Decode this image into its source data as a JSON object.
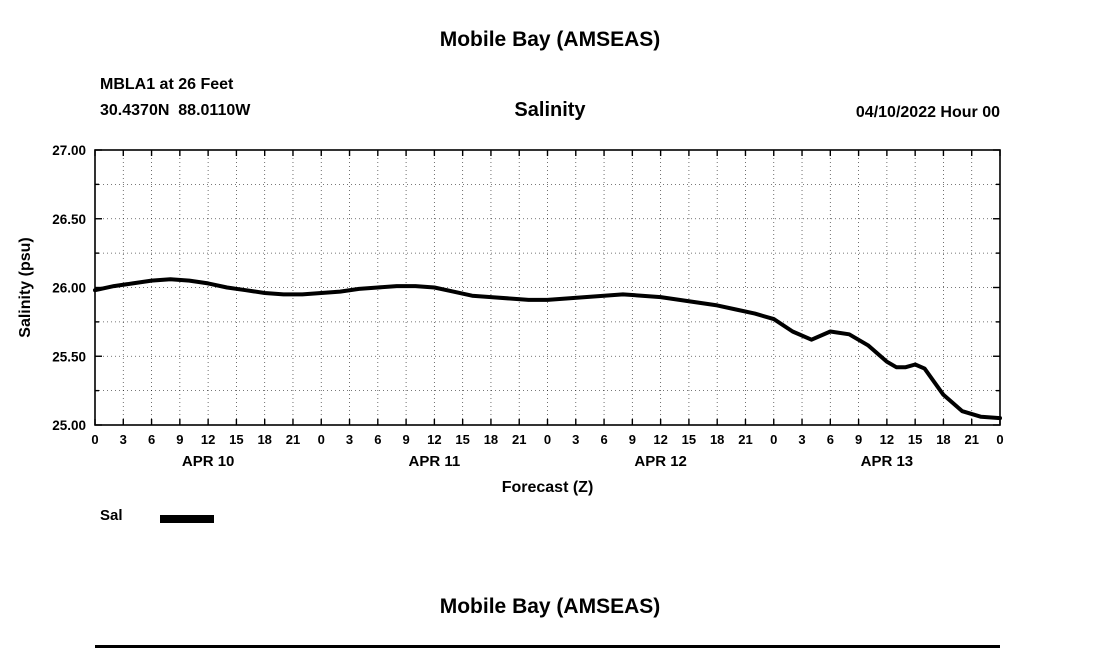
{
  "header": {
    "title": "Mobile Bay (AMSEAS)",
    "station": "MBLA1 at 26 Feet",
    "coordinates": "30.4370N  88.0110W",
    "variable": "Salinity",
    "run_label": "04/10/2022 Hour 00"
  },
  "legend": {
    "label": "Sal",
    "color": "#000000"
  },
  "next_chart": {
    "title": "Mobile Bay (AMSEAS)"
  },
  "chart_data": {
    "type": "line",
    "title": "Mobile Bay (AMSEAS)",
    "subtitle": "Salinity",
    "station": "MBLA1 at 26 Feet",
    "run": "04/10/2022 Hour 00",
    "xlabel": "Forecast (Z)",
    "ylabel": "Salinity (psu)",
    "ylim": [
      25.0,
      27.0
    ],
    "yticks": [
      25.0,
      25.5,
      26.0,
      26.5,
      27.0
    ],
    "xlim_hours": [
      0,
      96
    ],
    "x_tick_interval_hours": 3,
    "x_tick_labels_cycle": [
      "0",
      "3",
      "6",
      "9",
      "12",
      "15",
      "18",
      "21"
    ],
    "day_labels": [
      "APR 10",
      "APR 11",
      "APR 12",
      "APR 13"
    ],
    "grid": "dotted",
    "legend_position": "below-left",
    "series": [
      {
        "name": "Sal",
        "color": "#000000",
        "x_hours": [
          0,
          2,
          4,
          6,
          8,
          10,
          12,
          14,
          16,
          18,
          20,
          22,
          24,
          26,
          28,
          30,
          32,
          34,
          36,
          38,
          40,
          42,
          44,
          46,
          48,
          50,
          52,
          54,
          56,
          58,
          60,
          62,
          64,
          66,
          68,
          70,
          72,
          74,
          76,
          78,
          80,
          82,
          84,
          85,
          86,
          87,
          88,
          90,
          92,
          94,
          96
        ],
        "values": [
          25.98,
          26.01,
          26.03,
          26.05,
          26.06,
          26.05,
          26.03,
          26.0,
          25.98,
          25.96,
          25.95,
          25.95,
          25.96,
          25.97,
          25.99,
          26.0,
          26.01,
          26.01,
          26.0,
          25.97,
          25.94,
          25.93,
          25.92,
          25.91,
          25.91,
          25.92,
          25.93,
          25.94,
          25.95,
          25.94,
          25.93,
          25.91,
          25.89,
          25.87,
          25.84,
          25.81,
          25.77,
          25.68,
          25.62,
          25.68,
          25.66,
          25.58,
          25.46,
          25.42,
          25.42,
          25.44,
          25.41,
          25.22,
          25.1,
          25.06,
          25.05
        ]
      }
    ]
  }
}
